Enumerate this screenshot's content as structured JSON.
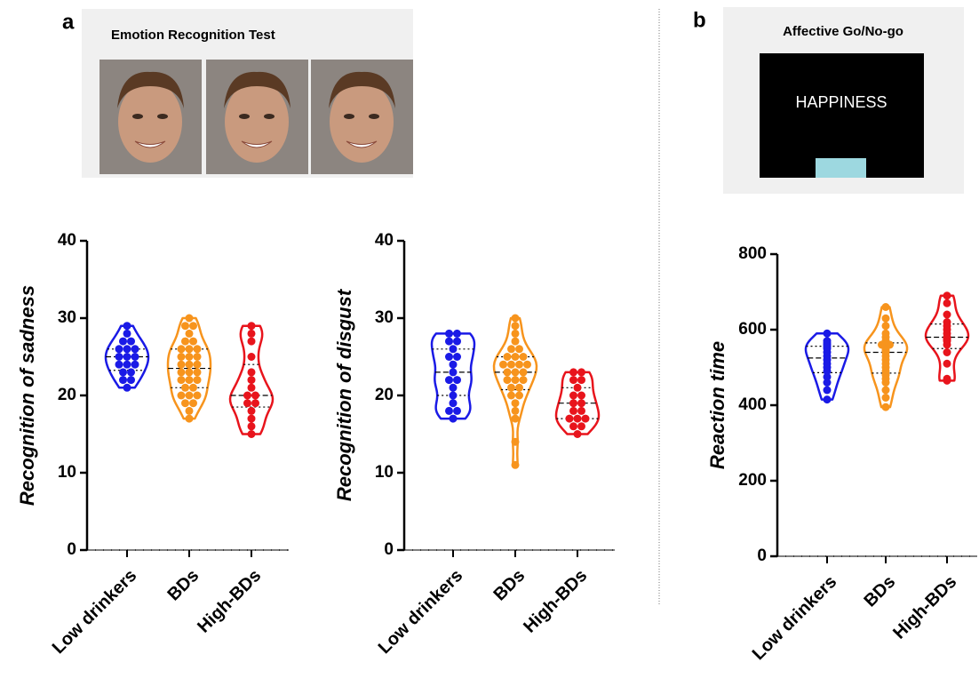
{
  "panels": [
    {
      "label": "a",
      "task_title": "Emotion Recognition Test"
    },
    {
      "label": "b",
      "task_title": "Affective Go/No-go",
      "stimulus_word": "HAPPINESS"
    }
  ],
  "chart_data": [
    {
      "type": "violin",
      "y_label": "Recognition of sadness",
      "ylim": [
        0,
        40
      ],
      "yticks": [
        0,
        10,
        20,
        30,
        40
      ],
      "series": [
        {
          "name": "Low drinkers",
          "color": "#1a1ae6",
          "values": [
            21,
            22,
            22,
            23,
            23,
            24,
            24,
            24,
            25,
            25,
            25,
            26,
            26,
            26,
            27,
            27,
            28,
            29
          ]
        },
        {
          "name": "BDs",
          "color": "#f7941d",
          "values": [
            17,
            18,
            19,
            19,
            20,
            20,
            20,
            21,
            21,
            22,
            22,
            22,
            23,
            23,
            23,
            24,
            24,
            24,
            25,
            25,
            25,
            26,
            26,
            26,
            27,
            27,
            28,
            29,
            29,
            30
          ]
        },
        {
          "name": "High-BDs",
          "color": "#e8141c",
          "values": [
            15,
            16,
            17,
            18,
            19,
            19,
            20,
            20,
            21,
            22,
            23,
            25,
            27,
            28,
            29
          ]
        }
      ]
    },
    {
      "type": "violin",
      "y_label": "Recognition of disgust",
      "ylim": [
        0,
        40
      ],
      "yticks": [
        0,
        10,
        20,
        30,
        40
      ],
      "series": [
        {
          "name": "Low drinkers",
          "color": "#1a1ae6",
          "values": [
            17,
            18,
            18,
            19,
            20,
            21,
            22,
            22,
            23,
            24,
            25,
            25,
            26,
            27,
            27,
            28,
            28
          ]
        },
        {
          "name": "BDs",
          "color": "#f7941d",
          "values": [
            11,
            14,
            17,
            18,
            19,
            20,
            20,
            21,
            21,
            22,
            22,
            22,
            23,
            23,
            23,
            24,
            24,
            24,
            24,
            25,
            25,
            25,
            26,
            26,
            27,
            28,
            29,
            30
          ]
        },
        {
          "name": "High-BDs",
          "color": "#e8141c",
          "values": [
            15,
            16,
            16,
            17,
            17,
            17,
            18,
            18,
            19,
            19,
            20,
            20,
            21,
            22,
            22,
            23,
            23
          ]
        }
      ]
    },
    {
      "type": "violin",
      "y_label": "Reaction time",
      "ylim": [
        0,
        800
      ],
      "yticks": [
        0,
        200,
        400,
        600,
        800
      ],
      "series": [
        {
          "name": "Low drinkers",
          "color": "#1a1ae6",
          "values": [
            415,
            440,
            460,
            475,
            490,
            500,
            510,
            520,
            530,
            540,
            550,
            555,
            560,
            565,
            570,
            590
          ]
        },
        {
          "name": "BDs",
          "color": "#f7941d",
          "values": [
            395,
            420,
            440,
            460,
            470,
            480,
            490,
            500,
            510,
            520,
            530,
            540,
            545,
            550,
            555,
            560,
            560,
            570,
            580,
            590,
            610,
            630,
            660
          ]
        },
        {
          "name": "High-BDs",
          "color": "#e8141c",
          "values": [
            465,
            470,
            510,
            540,
            560,
            570,
            575,
            580,
            590,
            600,
            610,
            620,
            640,
            670,
            690
          ]
        }
      ]
    }
  ]
}
